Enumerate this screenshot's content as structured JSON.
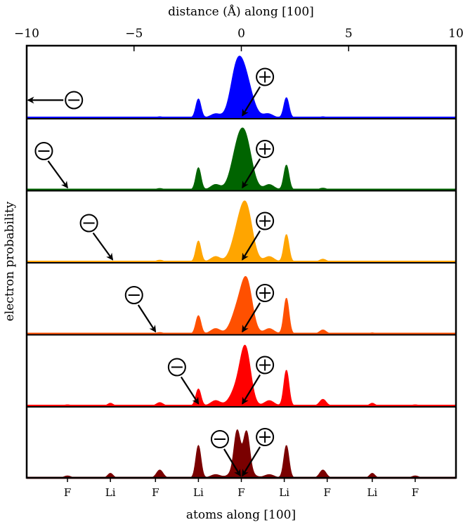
{
  "chart_data": {
    "type": "area",
    "title": "",
    "x_top_label": "distance (Å) along [100]",
    "x_bottom_label": "atoms along [100]",
    "ylabel": "electron probability",
    "xlim": [
      -10,
      10
    ],
    "x_ticks": [
      {
        "value": -10,
        "label": "−10"
      },
      {
        "value": -5,
        "label": "−5"
      },
      {
        "value": 0,
        "label": "0"
      },
      {
        "value": 5,
        "label": "5"
      },
      {
        "value": 10,
        "label": "10"
      }
    ],
    "atoms": [
      {
        "x": -8.1,
        "label": "F"
      },
      {
        "x": -6.1,
        "label": "Li"
      },
      {
        "x": -4.0,
        "label": "F"
      },
      {
        "x": -2.0,
        "label": "Li"
      },
      {
        "x": 0.0,
        "label": "F"
      },
      {
        "x": 2.0,
        "label": "Li"
      },
      {
        "x": 4.0,
        "label": "F"
      },
      {
        "x": 6.1,
        "label": "Li"
      },
      {
        "x": 8.1,
        "label": "F"
      }
    ],
    "positive_symbol": "⊕",
    "negative_symbol": "⊖",
    "series": [
      {
        "color": "#0000ff",
        "positive_label_x": 1.1,
        "positive_arrow_tip_x": 0.05,
        "negative_label_x": -7.8,
        "negative_arrow_tip_x": -10.0,
        "negative_arrow_style": "horizontal",
        "peaks": [
          [
            0.15,
            0.34,
            0.62
          ],
          [
            -0.25,
            0.28,
            0.55
          ],
          [
            -2.0,
            0.12,
            0.29
          ],
          [
            2.1,
            0.12,
            0.31
          ],
          [
            -1.2,
            0.22,
            0.06
          ],
          [
            1.25,
            0.22,
            0.06
          ],
          [
            -3.8,
            0.15,
            0.015
          ],
          [
            3.8,
            0.15,
            0.015
          ]
        ]
      },
      {
        "color": "#006400",
        "positive_label_x": 1.1,
        "positive_arrow_tip_x": 0.05,
        "negative_label_x": -9.2,
        "negative_arrow_tip_x": -8.1,
        "peaks": [
          [
            0.2,
            0.3,
            0.68
          ],
          [
            -0.2,
            0.3,
            0.5
          ],
          [
            -2.0,
            0.12,
            0.34
          ],
          [
            2.1,
            0.12,
            0.38
          ],
          [
            -1.2,
            0.22,
            0.08
          ],
          [
            1.3,
            0.22,
            0.08
          ],
          [
            -3.8,
            0.15,
            0.02
          ],
          [
            3.8,
            0.15,
            0.025
          ]
        ]
      },
      {
        "color": "#ffa500",
        "positive_label_x": 1.1,
        "positive_arrow_tip_x": 0.05,
        "negative_label_x": -7.1,
        "negative_arrow_tip_x": -6.0,
        "peaks": [
          [
            0.25,
            0.28,
            0.73
          ],
          [
            -0.15,
            0.3,
            0.42
          ],
          [
            -2.0,
            0.12,
            0.32
          ],
          [
            2.1,
            0.12,
            0.42
          ],
          [
            -1.2,
            0.22,
            0.08
          ],
          [
            1.3,
            0.22,
            0.08
          ],
          [
            -3.8,
            0.15,
            0.025
          ],
          [
            3.8,
            0.15,
            0.04
          ]
        ]
      },
      {
        "color": "#ff5000",
        "positive_label_x": 1.1,
        "positive_arrow_tip_x": 0.05,
        "negative_label_x": -5.0,
        "negative_arrow_tip_x": -4.0,
        "peaks": [
          [
            0.25,
            0.26,
            0.78
          ],
          [
            -0.2,
            0.28,
            0.33
          ],
          [
            -2.0,
            0.12,
            0.28
          ],
          [
            2.1,
            0.12,
            0.55
          ],
          [
            -1.2,
            0.22,
            0.08
          ],
          [
            1.3,
            0.22,
            0.08
          ],
          [
            -3.8,
            0.15,
            0.02
          ],
          [
            3.8,
            0.15,
            0.06
          ],
          [
            -6.1,
            0.12,
            0.01
          ],
          [
            6.1,
            0.12,
            0.015
          ]
        ]
      },
      {
        "color": "#ff0000",
        "positive_label_x": 1.1,
        "positive_arrow_tip_x": 0.05,
        "negative_label_x": -3.0,
        "negative_arrow_tip_x": -2.0,
        "peaks": [
          [
            0.2,
            0.24,
            0.82
          ],
          [
            -0.2,
            0.3,
            0.26
          ],
          [
            -2.0,
            0.12,
            0.26
          ],
          [
            2.1,
            0.12,
            0.55
          ],
          [
            -1.2,
            0.22,
            0.08
          ],
          [
            1.3,
            0.22,
            0.08
          ],
          [
            -3.8,
            0.15,
            0.05
          ],
          [
            3.8,
            0.15,
            0.1
          ],
          [
            -6.1,
            0.12,
            0.04
          ],
          [
            6.1,
            0.12,
            0.04
          ],
          [
            -8.1,
            0.15,
            0.015
          ],
          [
            8.1,
            0.15,
            0.015
          ]
        ]
      },
      {
        "color": "#7a0000",
        "positive_label_x": 1.1,
        "positive_arrow_tip_x": 0.05,
        "negative_label_x": -1.0,
        "negative_arrow_tip_x": -0.05,
        "peaks": [
          [
            -0.2,
            0.14,
            0.55
          ],
          [
            0.25,
            0.14,
            0.55
          ],
          [
            0.0,
            0.35,
            0.22
          ],
          [
            -2.0,
            0.12,
            0.5
          ],
          [
            2.1,
            0.12,
            0.5
          ],
          [
            -1.2,
            0.22,
            0.05
          ],
          [
            1.3,
            0.22,
            0.05
          ],
          [
            -3.8,
            0.15,
            0.12
          ],
          [
            3.8,
            0.15,
            0.12
          ],
          [
            -6.1,
            0.12,
            0.07
          ],
          [
            6.1,
            0.12,
            0.07
          ],
          [
            -8.1,
            0.15,
            0.03
          ],
          [
            8.1,
            0.15,
            0.03
          ]
        ]
      }
    ]
  }
}
